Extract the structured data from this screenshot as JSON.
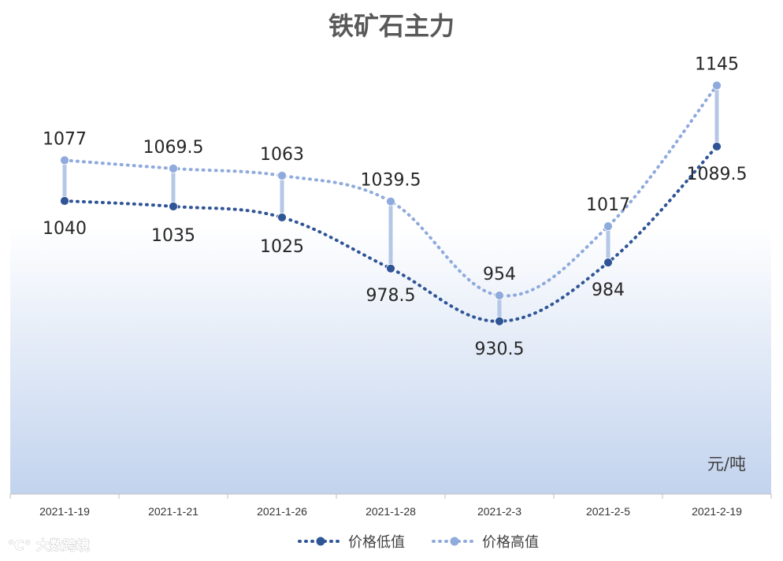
{
  "chart_data": {
    "type": "line",
    "title": "铁矿石主力",
    "unit_label": "元/吨",
    "categories": [
      "2021-1-19",
      "2021-1-21",
      "2021-1-26",
      "2021-1-28",
      "2021-2-3",
      "2021-2-5",
      "2021-2-19"
    ],
    "series": [
      {
        "name": "价格低值",
        "values": [
          1040,
          1035,
          1025,
          978.5,
          930.5,
          984,
          1089.5
        ],
        "color": "#2f5597"
      },
      {
        "name": "价格高值",
        "values": [
          1077,
          1069.5,
          1063,
          1039.5,
          954,
          1017,
          1145
        ],
        "color": "#8faadc"
      }
    ],
    "high_low_lines": true,
    "line_style": "dotted, smoothed",
    "legend_position": "bottom",
    "background": "gradient white to light blue",
    "watermark": "大数跨境"
  }
}
